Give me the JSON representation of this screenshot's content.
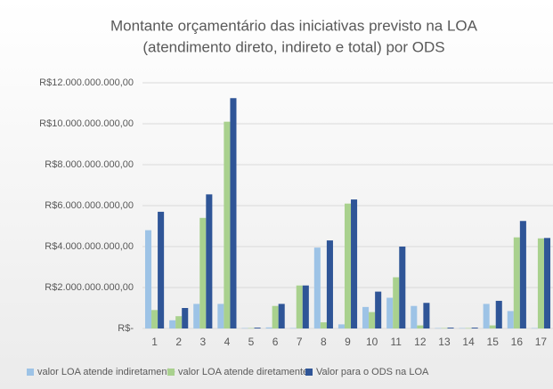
{
  "chart_data": {
    "type": "bar",
    "title": [
      "Montante orçamentário das iniciativas previsto na LOA",
      "(atendimento direto, indireto e total)  por ODS"
    ],
    "categories": [
      "1",
      "2",
      "3",
      "4",
      "5",
      "6",
      "7",
      "8",
      "9",
      "10",
      "11",
      "12",
      "13",
      "14",
      "15",
      "16",
      "17"
    ],
    "series": [
      {
        "name": "valor LOA atende indiretamente",
        "color": "#9dc3e6",
        "values": [
          4800000000,
          400000000,
          1200000000,
          1200000000,
          20000000,
          50000000,
          20000000,
          3950000000,
          200000000,
          1050000000,
          1500000000,
          1100000000,
          20000000,
          20000000,
          1200000000,
          850000000,
          20000000
        ]
      },
      {
        "name": "valor LOA atende diretamente",
        "color": "#a9d18e",
        "values": [
          900000000,
          600000000,
          5400000000,
          10100000000,
          20000000,
          1100000000,
          2100000000,
          300000000,
          6100000000,
          800000000,
          2500000000,
          150000000,
          20000000,
          20000000,
          150000000,
          4450000000,
          4400000000
        ]
      },
      {
        "name": "Valor para o ODS na LOA",
        "color": "#2f5597",
        "values": [
          5700000000,
          1000000000,
          6550000000,
          11250000000,
          40000000,
          1200000000,
          2100000000,
          4300000000,
          6300000000,
          1800000000,
          4000000000,
          1250000000,
          40000000,
          40000000,
          1350000000,
          5250000000,
          4420000000
        ]
      }
    ],
    "ylim": [
      0,
      12000000000
    ],
    "yticks": [
      {
        "value": 0,
        "label": "R$-"
      },
      {
        "value": 2000000000,
        "label": "R$2.000.000.000,00"
      },
      {
        "value": 4000000000,
        "label": "R$4.000.000.000,00"
      },
      {
        "value": 6000000000,
        "label": "R$6.000.000.000,00"
      },
      {
        "value": 8000000000,
        "label": "R$8.000.000.000,00"
      },
      {
        "value": 10000000000,
        "label": "R$10.000.000.000,00"
      },
      {
        "value": 12000000000,
        "label": "R$12.000.000.000,00"
      }
    ],
    "grid": true,
    "legend": "bottom"
  }
}
